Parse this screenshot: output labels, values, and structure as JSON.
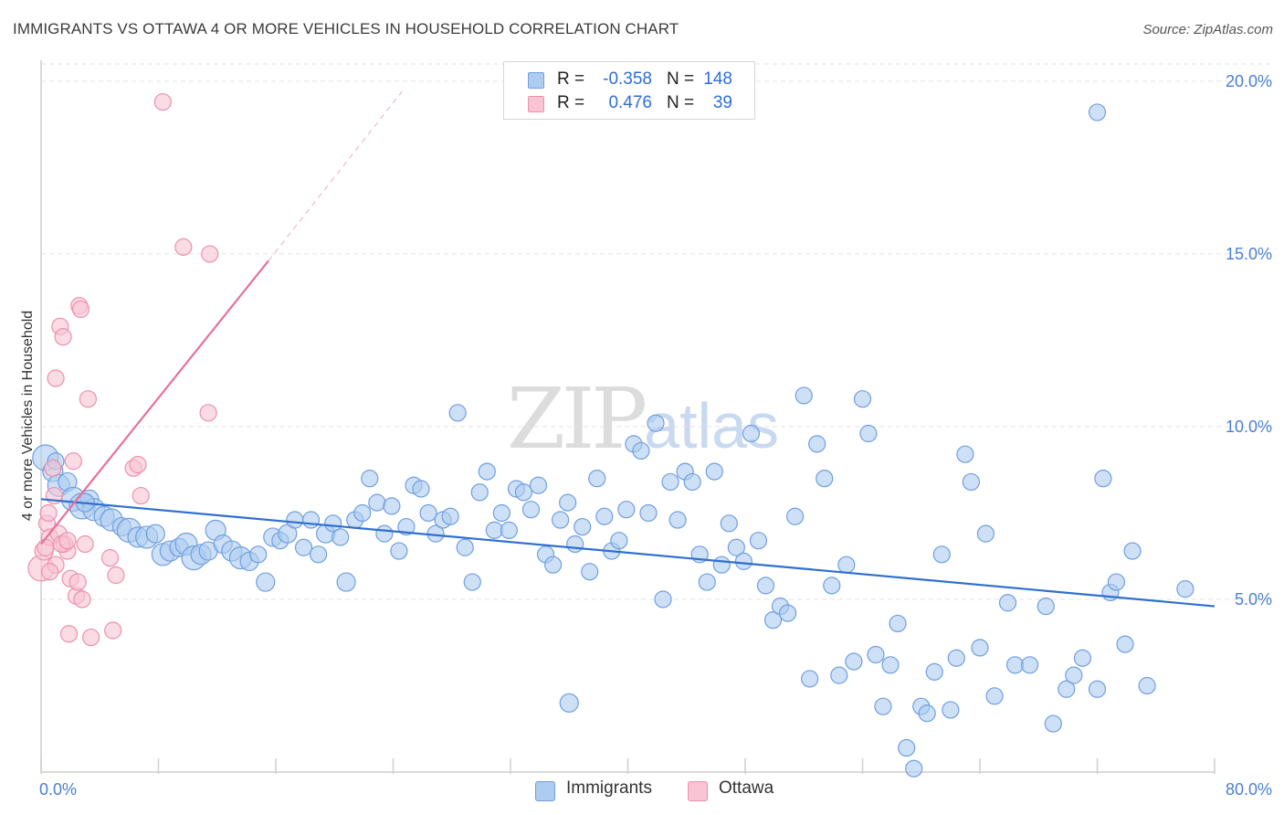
{
  "header": {
    "title": "IMMIGRANTS VS OTTAWA 4 OR MORE VEHICLES IN HOUSEHOLD CORRELATION CHART",
    "source": "Source: ZipAtlas.com"
  },
  "watermark": {
    "zip": "ZIP",
    "atlas": "atlas"
  },
  "legend": {
    "rows": [
      {
        "r_label": "R =",
        "r_value": "-0.358",
        "n_label": "N =",
        "n_value": "148",
        "color": "#aecbf0",
        "border": "#6f9fe0"
      },
      {
        "r_label": "R =",
        "r_value": "0.476",
        "n_label": "N =",
        "n_value": "39",
        "color": "#f9c4d4",
        "border": "#ee8fac"
      }
    ]
  },
  "bottom_legend": [
    {
      "label": "Immigrants",
      "color": "#aecbf0",
      "border": "#6f9fe0"
    },
    {
      "label": "Ottawa",
      "color": "#f9c4d4",
      "border": "#ee8fac"
    }
  ],
  "chart_data": {
    "type": "scatter",
    "title": "IMMIGRANTS VS OTTAWA 4 OR MORE VEHICLES IN HOUSEHOLD CORRELATION CHART",
    "ylabel": "4 or more Vehicles in Household",
    "xlabel": "",
    "xlim": [
      0,
      80
    ],
    "ylim": [
      0,
      20.5
    ],
    "x_tick_labels": [
      "0.0%",
      "80.0%"
    ],
    "y_ticks": [
      5,
      10,
      15,
      20
    ],
    "y_tick_labels": [
      "5.0%",
      "10.0%",
      "15.0%",
      "20.0%"
    ],
    "grid": true,
    "series": [
      {
        "name": "Immigrants",
        "color": "#aecbf0",
        "stroke": "#6f9fe0",
        "trend": {
          "x": [
            0,
            80
          ],
          "y": [
            7.9,
            4.8
          ],
          "color": "#2f6fd0"
        },
        "points": [
          [
            0.3,
            9.1,
            14
          ],
          [
            0.8,
            8.7,
            11
          ],
          [
            1.2,
            8.3,
            12
          ],
          [
            1.8,
            8.4,
            10
          ],
          [
            2.2,
            7.9,
            13
          ],
          [
            2.8,
            7.7,
            14
          ],
          [
            3.3,
            7.9,
            10
          ],
          [
            3.6,
            7.6,
            12
          ],
          [
            4.3,
            7.4,
            11
          ],
          [
            4.8,
            7.3,
            12
          ],
          [
            5.5,
            7.1,
            10
          ],
          [
            6.0,
            7.0,
            13
          ],
          [
            6.6,
            6.8,
            11
          ],
          [
            7.2,
            6.8,
            12
          ],
          [
            7.8,
            6.9,
            10
          ],
          [
            8.3,
            6.3,
            12
          ],
          [
            8.8,
            6.4,
            11
          ],
          [
            9.4,
            6.5,
            10
          ],
          [
            9.9,
            6.6,
            12
          ],
          [
            10.4,
            6.2,
            13
          ],
          [
            10.9,
            6.3,
            11
          ],
          [
            11.4,
            6.4,
            10
          ],
          [
            11.9,
            7.0,
            11
          ],
          [
            12.4,
            6.6,
            10
          ],
          [
            13.0,
            6.4,
            11
          ],
          [
            13.6,
            6.2,
            12
          ],
          [
            14.2,
            6.1,
            10
          ],
          [
            14.8,
            6.3,
            9
          ],
          [
            15.3,
            5.5,
            10
          ],
          [
            15.8,
            6.8,
            10
          ],
          [
            16.3,
            6.7,
            9
          ],
          [
            16.8,
            6.9,
            10
          ],
          [
            17.3,
            7.3,
            9
          ],
          [
            17.9,
            6.5,
            9
          ],
          [
            18.4,
            7.3,
            9
          ],
          [
            18.9,
            6.3,
            9
          ],
          [
            19.4,
            6.9,
            10
          ],
          [
            19.9,
            7.2,
            9
          ],
          [
            20.4,
            6.8,
            9
          ],
          [
            20.8,
            5.5,
            10
          ],
          [
            21.4,
            7.3,
            9
          ],
          [
            21.9,
            7.5,
            9
          ],
          [
            22.4,
            8.5,
            9
          ],
          [
            22.9,
            7.8,
            9
          ],
          [
            23.4,
            6.9,
            9
          ],
          [
            23.9,
            7.7,
            9
          ],
          [
            24.4,
            6.4,
            9
          ],
          [
            24.9,
            7.1,
            9
          ],
          [
            25.4,
            8.3,
            9
          ],
          [
            25.9,
            8.2,
            9
          ],
          [
            26.4,
            7.5,
            9
          ],
          [
            26.9,
            6.9,
            9
          ],
          [
            27.4,
            7.3,
            9
          ],
          [
            27.9,
            7.4,
            9
          ],
          [
            28.4,
            10.4,
            9
          ],
          [
            28.9,
            6.5,
            9
          ],
          [
            29.4,
            5.5,
            9
          ],
          [
            29.9,
            8.1,
            9
          ],
          [
            30.4,
            8.7,
            9
          ],
          [
            30.9,
            7.0,
            9
          ],
          [
            31.4,
            7.5,
            9
          ],
          [
            31.9,
            7.0,
            9
          ],
          [
            32.4,
            8.2,
            9
          ],
          [
            32.9,
            8.1,
            9
          ],
          [
            33.4,
            7.6,
            9
          ],
          [
            33.9,
            8.3,
            9
          ],
          [
            34.4,
            6.3,
            9
          ],
          [
            34.9,
            6.0,
            9
          ],
          [
            35.4,
            7.3,
            9
          ],
          [
            35.9,
            7.8,
            9
          ],
          [
            36.4,
            6.6,
            9
          ],
          [
            36.9,
            7.1,
            9
          ],
          [
            37.4,
            5.8,
            9
          ],
          [
            37.9,
            8.5,
            9
          ],
          [
            38.4,
            7.4,
            9
          ],
          [
            38.9,
            6.4,
            9
          ],
          [
            39.4,
            6.7,
            9
          ],
          [
            39.9,
            7.6,
            9
          ],
          [
            40.4,
            9.5,
            9
          ],
          [
            40.9,
            9.3,
            9
          ],
          [
            41.4,
            7.5,
            9
          ],
          [
            41.9,
            10.1,
            9
          ],
          [
            42.4,
            5.0,
            9
          ],
          [
            42.9,
            8.4,
            9
          ],
          [
            43.4,
            7.3,
            9
          ],
          [
            43.9,
            8.7,
            9
          ],
          [
            44.4,
            8.4,
            9
          ],
          [
            44.9,
            6.3,
            9
          ],
          [
            45.4,
            5.5,
            9
          ],
          [
            45.9,
            8.7,
            9
          ],
          [
            46.4,
            6.0,
            9
          ],
          [
            46.9,
            7.2,
            9
          ],
          [
            47.4,
            6.5,
            9
          ],
          [
            47.9,
            6.1,
            9
          ],
          [
            48.4,
            9.8,
            9
          ],
          [
            48.9,
            6.7,
            9
          ],
          [
            49.4,
            5.4,
            9
          ],
          [
            49.9,
            4.4,
            9
          ],
          [
            50.4,
            4.8,
            9
          ],
          [
            50.9,
            4.6,
            9
          ],
          [
            51.4,
            7.4,
            9
          ],
          [
            52.0,
            10.9,
            9
          ],
          [
            52.4,
            2.7,
            9
          ],
          [
            52.9,
            9.5,
            9
          ],
          [
            53.4,
            8.5,
            9
          ],
          [
            53.9,
            5.4,
            9
          ],
          [
            54.4,
            2.8,
            9
          ],
          [
            54.9,
            6.0,
            9
          ],
          [
            55.4,
            3.2,
            9
          ],
          [
            56.0,
            10.8,
            9
          ],
          [
            56.4,
            9.8,
            9
          ],
          [
            56.9,
            3.4,
            9
          ],
          [
            57.4,
            1.9,
            9
          ],
          [
            57.9,
            3.1,
            9
          ],
          [
            58.4,
            4.3,
            9
          ],
          [
            59.0,
            0.7,
            9
          ],
          [
            59.5,
            0.1,
            9
          ],
          [
            60.0,
            1.9,
            9
          ],
          [
            60.4,
            1.7,
            9
          ],
          [
            60.9,
            2.9,
            9
          ],
          [
            61.4,
            6.3,
            9
          ],
          [
            62.0,
            1.8,
            9
          ],
          [
            62.4,
            3.3,
            9
          ],
          [
            63.0,
            9.2,
            9
          ],
          [
            63.4,
            8.4,
            9
          ],
          [
            64.0,
            3.6,
            9
          ],
          [
            64.4,
            6.9,
            9
          ],
          [
            65.0,
            2.2,
            9
          ],
          [
            65.9,
            4.9,
            9
          ],
          [
            66.4,
            3.1,
            9
          ],
          [
            67.4,
            3.1,
            9
          ],
          [
            68.5,
            4.8,
            9
          ],
          [
            69.0,
            1.4,
            9
          ],
          [
            69.9,
            2.4,
            9
          ],
          [
            70.4,
            2.8,
            9
          ],
          [
            71.0,
            3.3,
            9
          ],
          [
            72.0,
            2.4,
            9
          ],
          [
            72.4,
            8.5,
            9
          ],
          [
            72.9,
            5.2,
            9
          ],
          [
            73.3,
            5.5,
            9
          ],
          [
            73.9,
            3.7,
            9
          ],
          [
            74.4,
            6.4,
            9
          ],
          [
            75.4,
            2.5,
            9
          ],
          [
            78.0,
            5.3,
            9
          ],
          [
            72.0,
            19.1,
            9
          ],
          [
            36.0,
            2.0,
            10
          ],
          [
            1.0,
            9.0,
            9
          ],
          [
            3.0,
            7.8,
            10
          ]
        ]
      },
      {
        "name": "Ottawa",
        "color": "#f9c4d4",
        "stroke": "#ee8fac",
        "trend": {
          "x": [
            0,
            15.5
          ],
          "y": [
            6.6,
            14.8
          ],
          "dash_to": [
            24.6,
            19.7
          ],
          "color": "#e8709a"
        },
        "points": [
          [
            0.0,
            5.9,
            14
          ],
          [
            0.2,
            6.4,
            10
          ],
          [
            0.4,
            7.2,
            9
          ],
          [
            0.6,
            6.8,
            9
          ],
          [
            0.8,
            8.8,
            9
          ],
          [
            1.0,
            6.0,
            9
          ],
          [
            1.0,
            11.4,
            9
          ],
          [
            1.2,
            6.9,
            9
          ],
          [
            1.3,
            12.9,
            9
          ],
          [
            1.5,
            12.6,
            9
          ],
          [
            1.6,
            6.6,
            9
          ],
          [
            1.8,
            6.4,
            9
          ],
          [
            1.9,
            4.0,
            9
          ],
          [
            2.0,
            5.6,
            9
          ],
          [
            2.2,
            9.0,
            9
          ],
          [
            2.4,
            5.1,
            9
          ],
          [
            2.6,
            13.5,
            9
          ],
          [
            2.7,
            13.4,
            9
          ],
          [
            2.8,
            5.0,
            9
          ],
          [
            3.0,
            6.6,
            9
          ],
          [
            3.2,
            10.8,
            9
          ],
          [
            3.4,
            3.9,
            9
          ],
          [
            4.7,
            6.2,
            9
          ],
          [
            4.9,
            4.1,
            9
          ],
          [
            5.1,
            5.7,
            9
          ],
          [
            6.3,
            8.8,
            9
          ],
          [
            6.8,
            8.0,
            9
          ],
          [
            8.3,
            19.4,
            9
          ],
          [
            9.7,
            15.2,
            9
          ],
          [
            11.5,
            15.0,
            9
          ],
          [
            11.4,
            10.4,
            9
          ],
          [
            0.3,
            6.5,
            9
          ],
          [
            0.6,
            5.8,
            9
          ],
          [
            1.4,
            6.6,
            9
          ],
          [
            2.5,
            5.5,
            9
          ],
          [
            6.6,
            8.9,
            9
          ],
          [
            1.8,
            6.7,
            9
          ],
          [
            0.9,
            8.0,
            9
          ],
          [
            0.5,
            7.5,
            9
          ]
        ]
      }
    ]
  }
}
